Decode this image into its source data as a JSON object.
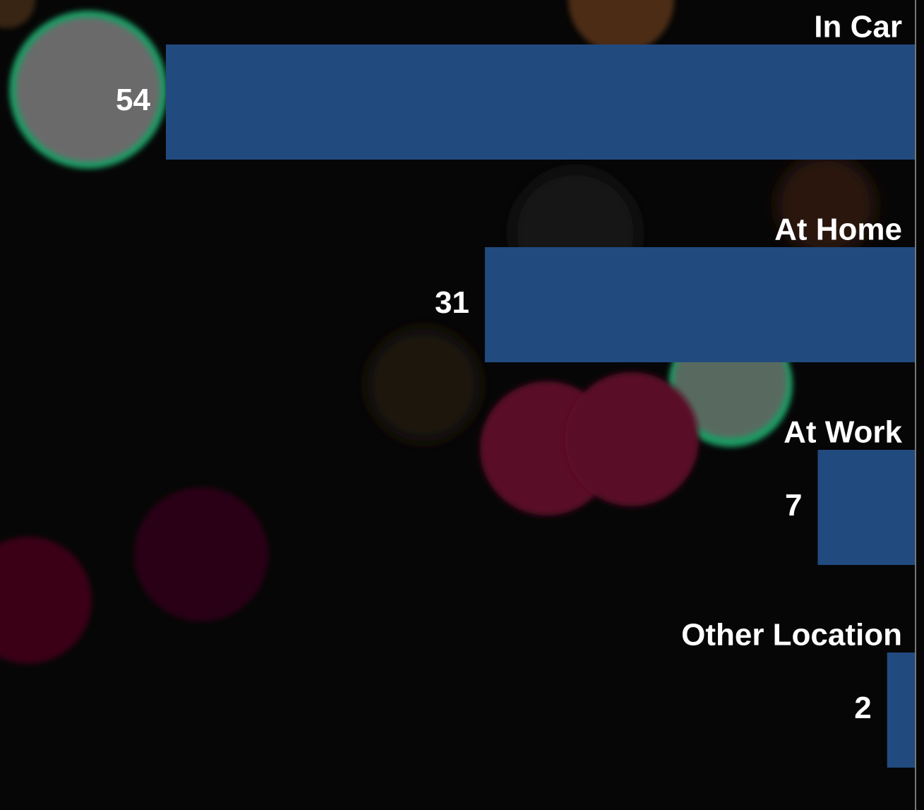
{
  "chart_data": {
    "type": "bar",
    "orientation": "horizontal",
    "categories": [
      "In Car",
      "At Home",
      "At Work",
      "Other Location"
    ],
    "values": [
      54,
      31,
      7,
      2
    ],
    "color": "#214a7f"
  }
}
